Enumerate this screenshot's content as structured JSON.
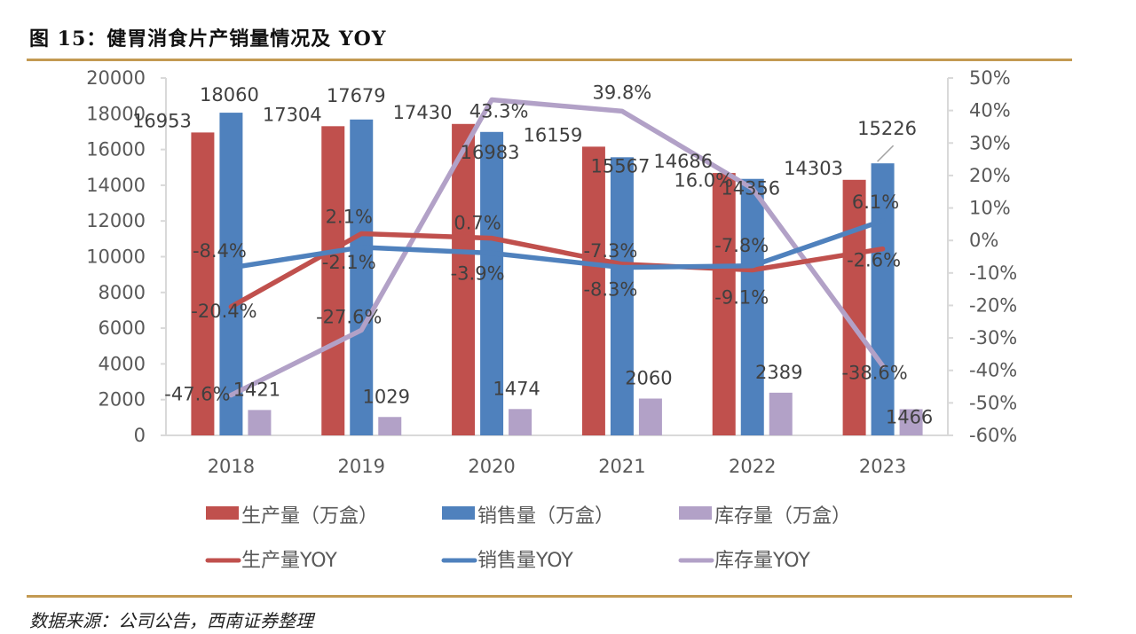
{
  "header": {
    "title": "图 15：健胃消食片产销量情况及 YOY"
  },
  "footer": {
    "source": "数据来源：公司公告，西南证券整理"
  },
  "colors": {
    "production": "#c0504d",
    "sales": "#4f81bd",
    "inventory": "#b2a1c7",
    "rule": "#c39a52",
    "axis": "#d9d9d9"
  },
  "chart_data": {
    "type": "bar",
    "title": "健胃消食片产销量情况及 YOY",
    "categories": [
      "2018",
      "2019",
      "2020",
      "2021",
      "2022",
      "2023"
    ],
    "y_left": {
      "label": "",
      "range": [
        0,
        20000
      ],
      "ticks": [
        "0",
        "2000",
        "4000",
        "6000",
        "8000",
        "10000",
        "12000",
        "14000",
        "16000",
        "18000",
        "20000"
      ]
    },
    "y_right": {
      "label": "",
      "range": [
        -60,
        50
      ],
      "ticks": [
        "-60%",
        "-50%",
        "-40%",
        "-30%",
        "-20%",
        "-10%",
        "0%",
        "10%",
        "20%",
        "30%",
        "40%",
        "50%"
      ]
    },
    "grid": false,
    "legend_position": "bottom",
    "bar_series": [
      {
        "name": "生产量（万盒）",
        "color_key": "production",
        "values": [
          16953,
          17304,
          17430,
          16159,
          14686,
          14303
        ],
        "labels": [
          "16953",
          "17304",
          "17430",
          "16159",
          "14686",
          "14303"
        ]
      },
      {
        "name": "销售量（万盒）",
        "color_key": "sales",
        "values": [
          18060,
          17679,
          16983,
          15567,
          14356,
          15226
        ],
        "labels": [
          "18060",
          "17679",
          "16983",
          "15567",
          "14356",
          "15226"
        ]
      },
      {
        "name": "库存量（万盒）",
        "color_key": "inventory",
        "values": [
          1421,
          1029,
          1474,
          2060,
          2389,
          1466
        ],
        "labels": [
          "1421",
          "1029",
          "1474",
          "2060",
          "2389",
          "1466"
        ]
      }
    ],
    "line_series": [
      {
        "name": "生产量YOY",
        "color_key": "production",
        "values": [
          -20.4,
          2.1,
          0.7,
          -7.3,
          -9.1,
          -2.6
        ],
        "labels": [
          "-20.4%",
          "2.1%",
          "0.7%",
          "-7.3%",
          "-9.1%",
          "-2.6%"
        ]
      },
      {
        "name": "销售量YOY",
        "color_key": "sales",
        "values": [
          -8.4,
          -2.1,
          -3.9,
          -8.3,
          -7.8,
          6.1
        ],
        "labels": [
          "-8.4%",
          "-2.1%",
          "-3.9%",
          "-8.3%",
          "-7.8%",
          "6.1%"
        ]
      },
      {
        "name": "库存量YOY",
        "color_key": "inventory",
        "values": [
          -47.6,
          -27.6,
          43.3,
          39.8,
          16.0,
          -38.6
        ],
        "labels": [
          "-47.6%",
          "-27.6%",
          "43.3%",
          "39.8%",
          "16.0%",
          "-38.6%"
        ]
      }
    ]
  }
}
